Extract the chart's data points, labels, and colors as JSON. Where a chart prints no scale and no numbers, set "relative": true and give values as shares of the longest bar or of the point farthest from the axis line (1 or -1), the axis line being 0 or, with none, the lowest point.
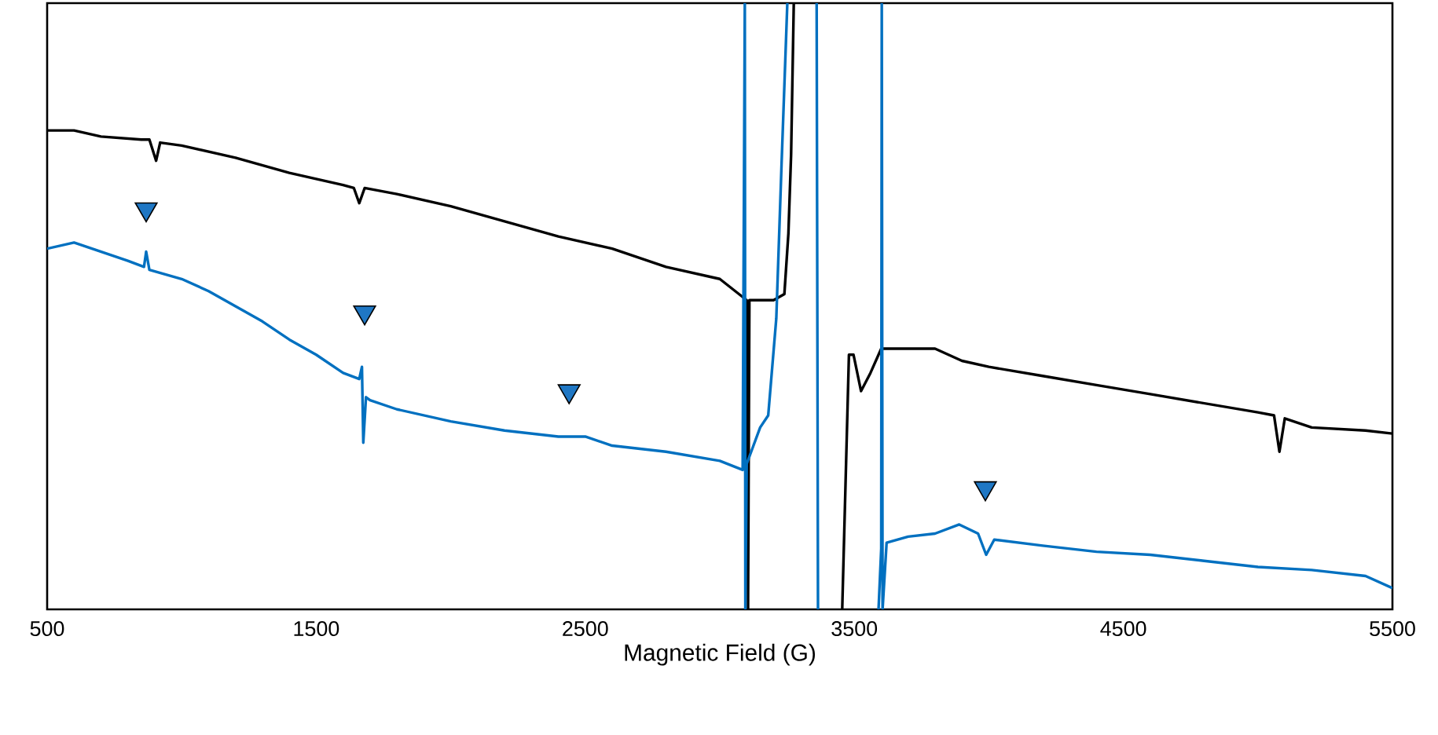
{
  "chart_data": {
    "type": "line",
    "xlabel": "Magnetic Field (G)",
    "relative": true,
    "tick_labels": "x",
    "grid": false,
    "xlim": [
      500,
      5500
    ],
    "xticks": [
      500,
      1500,
      2500,
      3500,
      4500,
      5500
    ],
    "series": [
      {
        "color": "#000000",
        "x": [
          500,
          600,
          700,
          850,
          880,
          905,
          920,
          1000,
          1200,
          1400,
          1600,
          1640,
          1660,
          1680,
          1800,
          2000,
          2200,
          2400,
          2600,
          2800,
          3000,
          3100,
          3105,
          3110,
          3200,
          3240,
          3255,
          3265,
          3275,
          3365,
          3455,
          3480,
          3497,
          3525,
          3560,
          3600,
          3700,
          3800,
          3900,
          4000,
          4200,
          4400,
          4600,
          4800,
          5000,
          5060,
          5080,
          5100,
          5200,
          5400,
          5500
        ],
        "values": [
          0.79,
          0.79,
          0.78,
          0.775,
          0.775,
          0.74,
          0.77,
          0.765,
          0.745,
          0.72,
          0.7,
          0.695,
          0.67,
          0.695,
          0.685,
          0.665,
          0.64,
          0.615,
          0.595,
          0.565,
          0.545,
          0.51,
          0,
          0.51,
          0.51,
          0.52,
          0.62,
          0.75,
          1,
          null,
          0,
          0.42,
          0.42,
          0.36,
          0.39,
          0.43,
          0.43,
          0.43,
          0.41,
          0.4,
          0.385,
          0.37,
          0.355,
          0.34,
          0.325,
          0.32,
          0.26,
          0.315,
          0.3,
          0.295,
          0.29
        ]
      },
      {
        "color": "#0070c0",
        "x": [
          500,
          600,
          700,
          800,
          860,
          868,
          880,
          1000,
          1100,
          1200,
          1300,
          1400,
          1500,
          1600,
          1660,
          1670,
          1675,
          1685,
          1700,
          1800,
          2000,
          2200,
          2400,
          2500,
          2600,
          2800,
          3000,
          3085,
          3093,
          3095,
          3100,
          3150,
          3180,
          3210,
          3230,
          3251,
          3300,
          3360,
          3365,
          3480,
          3590,
          3600,
          3602,
          3605,
          3620,
          3700,
          3800,
          3890,
          3960,
          3990,
          4020,
          4200,
          4400,
          4600,
          4800,
          5000,
          5200,
          5400,
          5500
        ],
        "values": [
          0.595,
          0.605,
          0.59,
          0.575,
          0.565,
          0.59,
          0.56,
          0.545,
          0.525,
          0.5,
          0.475,
          0.445,
          0.42,
          0.39,
          0.38,
          0.4,
          0.275,
          0.35,
          0.345,
          0.33,
          0.31,
          0.295,
          0.285,
          0.285,
          0.27,
          0.26,
          0.245,
          0.23,
          1,
          0,
          0.24,
          0.3,
          0.32,
          0.48,
          0.74,
          1,
          null,
          1,
          0,
          null,
          0,
          0.1,
          1,
          0,
          0.11,
          0.12,
          0.125,
          0.14,
          0.125,
          0.09,
          0.115,
          0.105,
          0.095,
          0.09,
          0.08,
          0.07,
          0.065,
          0.055,
          0.035
        ]
      },
      {
        "type": "scatter",
        "marker": "triangle",
        "color": "#1f77c4",
        "x": [
          868,
          1680,
          2440,
          3987
        ],
        "values": [
          0.66,
          0.49,
          0.36,
          0.2
        ]
      }
    ]
  }
}
